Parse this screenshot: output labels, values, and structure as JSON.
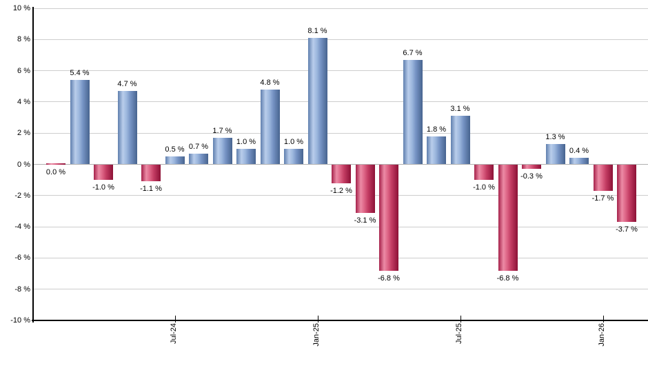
{
  "chart_data": {
    "type": "bar",
    "title": "",
    "unit": "%",
    "ylim": [
      -10,
      10
    ],
    "grid": true,
    "legend": null,
    "yticks": [
      {
        "value": 10,
        "label": "10 %"
      },
      {
        "value": 8,
        "label": "8 %"
      },
      {
        "value": 6,
        "label": "6 %"
      },
      {
        "value": 4,
        "label": "4 %"
      },
      {
        "value": 2,
        "label": "2 %"
      },
      {
        "value": 0,
        "label": "0 %"
      },
      {
        "value": -2,
        "label": "-2 %"
      },
      {
        "value": -4,
        "label": "-4 %"
      },
      {
        "value": -6,
        "label": "-6 %"
      },
      {
        "value": -8,
        "label": "-8 %"
      },
      {
        "value": -10,
        "label": "-10 %"
      }
    ],
    "xticks": [
      {
        "bar_index": 5,
        "label": "Jul-24"
      },
      {
        "bar_index": 11,
        "label": "Jan-25"
      },
      {
        "bar_index": 17,
        "label": "Jul-25"
      },
      {
        "bar_index": 23,
        "label": "Jan-26"
      }
    ],
    "bars": [
      {
        "value": 0.0,
        "label": "0.0 %"
      },
      {
        "value": 5.4,
        "label": "5.4 %"
      },
      {
        "value": -1.0,
        "label": "-1.0 %"
      },
      {
        "value": 4.7,
        "label": "4.7 %"
      },
      {
        "value": -1.1,
        "label": "-1.1 %"
      },
      {
        "value": 0.5,
        "label": "0.5 %"
      },
      {
        "value": 0.7,
        "label": "0.7 %"
      },
      {
        "value": 1.7,
        "label": "1.7 %"
      },
      {
        "value": 1.0,
        "label": "1.0 %"
      },
      {
        "value": 4.8,
        "label": "4.8 %"
      },
      {
        "value": 1.0,
        "label": "1.0 %"
      },
      {
        "value": 8.1,
        "label": "8.1 %"
      },
      {
        "value": -1.2,
        "label": "-1.2 %"
      },
      {
        "value": -3.1,
        "label": "-3.1 %"
      },
      {
        "value": -6.8,
        "label": "-6.8 %"
      },
      {
        "value": 6.7,
        "label": "6.7 %"
      },
      {
        "value": 1.8,
        "label": "1.8 %"
      },
      {
        "value": 3.1,
        "label": "3.1 %"
      },
      {
        "value": -1.0,
        "label": "-1.0 %"
      },
      {
        "value": -6.8,
        "label": "-6.8 %"
      },
      {
        "value": -0.3,
        "label": "-0.3 %"
      },
      {
        "value": 1.3,
        "label": "1.3 %"
      },
      {
        "value": 0.4,
        "label": "0.4 %"
      },
      {
        "value": -1.7,
        "label": "-1.7 %"
      },
      {
        "value": -3.7,
        "label": "-3.7 %"
      }
    ],
    "colors": {
      "positive_bar": "#7ea0cf",
      "positive_bar_highlight": "#b9cdeb",
      "positive_bar_edge": "#47648f",
      "negative_bar": "#cf4a6e",
      "negative_bar_highlight": "#ec8ba5",
      "negative_bar_edge": "#8c1136",
      "gridline": "#cdcdcd",
      "zero_line": "#b0b0b0",
      "axis": "#000000",
      "text": "#000000"
    }
  }
}
